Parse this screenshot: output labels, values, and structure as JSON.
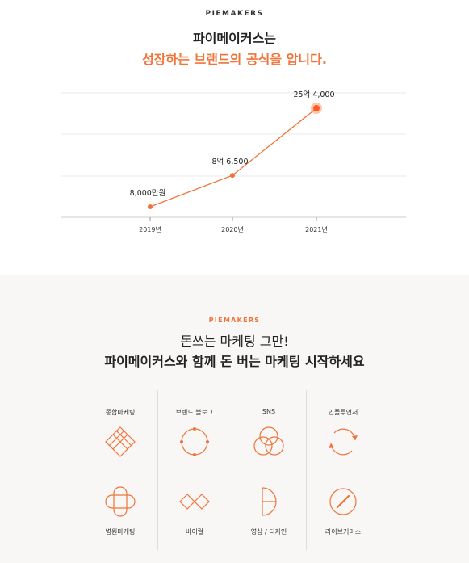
{
  "top_section": {
    "brand": "PIEMAKERS",
    "title_line1": "파이메이커스는",
    "title_line2": "성장하는 브랜드의 공식을 압니다."
  },
  "chart_data": {
    "type": "line",
    "categories": [
      "2019년",
      "2020년",
      "2021년"
    ],
    "data_labels": [
      "8,000만원",
      "8억 6,500",
      "25억 4,000"
    ],
    "values": [
      80000000,
      865000000,
      2540000000
    ],
    "grid": true,
    "colors": {
      "line": "#f0743a",
      "highlight": "#ff5a1f"
    }
  },
  "bottom_section": {
    "brand": "PIEMAKERS",
    "subtitle_line1": "돈쓰는 마케팅 그만!",
    "subtitle_line2": "파이메이커스와 함께 돈 버는 마케팅 시작하세요",
    "services": [
      {
        "label": "종합마케팅",
        "icon": "diamond-grid-icon"
      },
      {
        "label": "브랜드 블로그",
        "icon": "circle-dots-icon"
      },
      {
        "label": "SNS",
        "icon": "three-circles-icon"
      },
      {
        "label": "인플루언서",
        "icon": "circle-arrows-icon"
      },
      {
        "label": "병원마케팅",
        "icon": "rounded-cross-icon"
      },
      {
        "label": "바이럴",
        "icon": "twin-diamonds-icon"
      },
      {
        "label": "영상 / 디자인",
        "icon": "half-circle-icon"
      },
      {
        "label": "라이브커머스",
        "icon": "circle-slash-icon"
      }
    ]
  },
  "accent_color": "#f0743a"
}
